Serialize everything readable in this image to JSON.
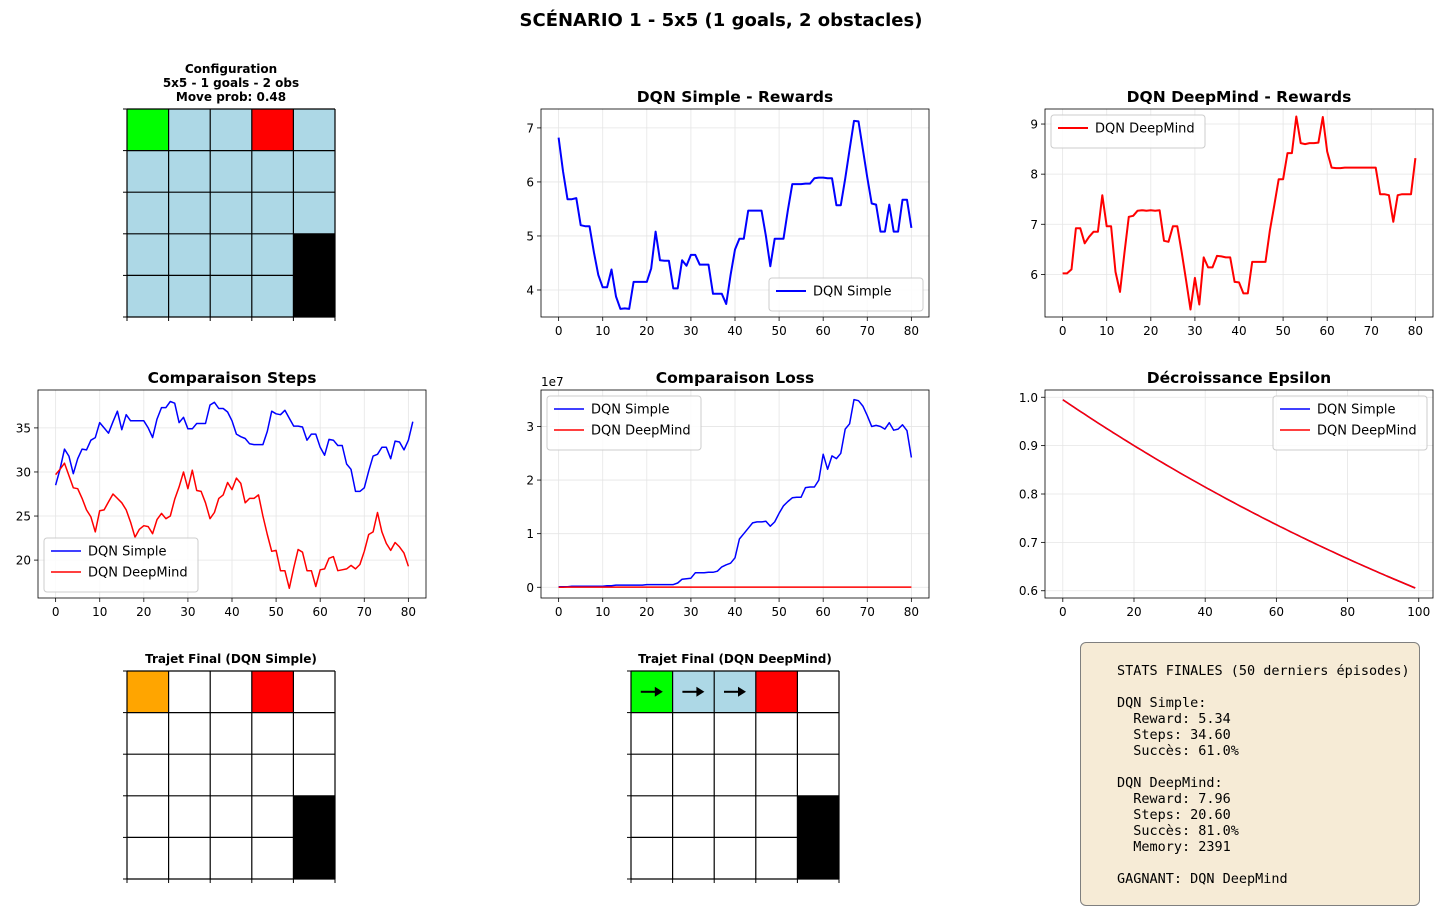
{
  "figure": {
    "suptitle": "SCÉNARIO 1 - 5x5 (1 goals, 2 obstacles)"
  },
  "colors": {
    "goal": "#00ff00",
    "trap": "#ff0000",
    "obstacle": "#000000",
    "path": "#add8e6",
    "agent": "#ffa500",
    "empty": "#ffffff",
    "simple": "#0000ff",
    "deepmind": "#ff0000",
    "grid": "#e5e5e5",
    "stats_bg": "#f6ebd6"
  },
  "grids": {
    "config": {
      "title_lines": [
        "Configuration",
        "5x5 - 1 goals - 2 obs",
        "Move prob: 0.48"
      ],
      "cells": [
        [
          "goal",
          "path",
          "path",
          "trap",
          "path"
        ],
        [
          "path",
          "path",
          "path",
          "path",
          "path"
        ],
        [
          "path",
          "path",
          "path",
          "path",
          "path"
        ],
        [
          "path",
          "path",
          "path",
          "path",
          "obstacle"
        ],
        [
          "path",
          "path",
          "path",
          "path",
          "obstacle"
        ]
      ],
      "arrows": []
    },
    "simple": {
      "title_lines": [
        "Trajet Final (DQN Simple)"
      ],
      "cells": [
        [
          "agent",
          "empty",
          "empty",
          "trap",
          "empty"
        ],
        [
          "empty",
          "empty",
          "empty",
          "empty",
          "empty"
        ],
        [
          "empty",
          "empty",
          "empty",
          "empty",
          "empty"
        ],
        [
          "empty",
          "empty",
          "empty",
          "empty",
          "obstacle"
        ],
        [
          "empty",
          "empty",
          "empty",
          "empty",
          "obstacle"
        ]
      ],
      "arrows": []
    },
    "deepmind": {
      "title_lines": [
        "Trajet Final (DQN DeepMind)"
      ],
      "cells": [
        [
          "goal",
          "path",
          "path",
          "trap",
          "empty"
        ],
        [
          "empty",
          "empty",
          "empty",
          "empty",
          "empty"
        ],
        [
          "empty",
          "empty",
          "empty",
          "empty",
          "empty"
        ],
        [
          "empty",
          "empty",
          "empty",
          "empty",
          "obstacle"
        ],
        [
          "empty",
          "empty",
          "empty",
          "empty",
          "obstacle"
        ]
      ],
      "arrows": [
        [
          0,
          0,
          "right"
        ],
        [
          0,
          1,
          "right"
        ],
        [
          0,
          2,
          "right"
        ]
      ]
    }
  },
  "chart_data": [
    {
      "id": "rewards-simple",
      "type": "line",
      "title": "DQN Simple - Rewards",
      "xlabel": "",
      "ylabel": "",
      "xlim": [
        -4,
        84
      ],
      "ylim": [
        3.5,
        7.35
      ],
      "xticks": [
        0,
        10,
        20,
        30,
        40,
        50,
        60,
        70,
        80
      ],
      "yticks": [
        4,
        5,
        6,
        7
      ],
      "grid": true,
      "legend": "lower right",
      "series": [
        {
          "name": "DQN Simple",
          "color": "#0000ff",
          "x_start": 0,
          "values": [
            6.82,
            6.2,
            5.68,
            5.68,
            5.7,
            5.2,
            5.18,
            5.18,
            4.7,
            4.28,
            4.05,
            4.05,
            4.38,
            3.88,
            3.65,
            3.66,
            3.65,
            4.15,
            4.15,
            4.15,
            4.15,
            4.4,
            5.08,
            4.55,
            4.54,
            4.54,
            4.03,
            4.03,
            4.55,
            4.45,
            4.65,
            4.65,
            4.47,
            4.47,
            4.47,
            3.93,
            3.93,
            3.93,
            3.74,
            4.28,
            4.75,
            4.95,
            4.95,
            5.47,
            5.47,
            5.47,
            5.47,
            5.0,
            4.44,
            4.95,
            4.95,
            4.95,
            5.48,
            5.96,
            5.96,
            5.96,
            5.97,
            5.97,
            6.07,
            6.08,
            6.08,
            6.07,
            6.07,
            5.57,
            5.57,
            6.06,
            6.6,
            7.13,
            7.12,
            6.6,
            6.08,
            5.6,
            5.58,
            5.08,
            5.08,
            5.58,
            5.08,
            5.08,
            5.67,
            5.67,
            5.15
          ]
        }
      ]
    },
    {
      "id": "rewards-deepmind",
      "type": "line",
      "title": "DQN DeepMind - Rewards",
      "xlabel": "",
      "ylabel": "",
      "xlim": [
        -4,
        84
      ],
      "ylim": [
        5.15,
        9.3
      ],
      "xticks": [
        0,
        10,
        20,
        30,
        40,
        50,
        60,
        70,
        80
      ],
      "yticks": [
        6,
        7,
        8,
        9
      ],
      "grid": true,
      "legend": "upper left",
      "series": [
        {
          "name": "DQN DeepMind",
          "color": "#ff0000",
          "x_start": 0,
          "values": [
            6.02,
            6.02,
            6.1,
            6.92,
            6.92,
            6.62,
            6.75,
            6.85,
            6.85,
            7.58,
            6.96,
            6.96,
            6.05,
            5.65,
            6.42,
            7.15,
            7.17,
            7.27,
            7.28,
            7.27,
            7.28,
            7.27,
            7.28,
            6.67,
            6.65,
            6.96,
            6.96,
            6.44,
            5.88,
            5.3,
            5.93,
            5.4,
            6.34,
            6.14,
            6.14,
            6.37,
            6.36,
            6.34,
            6.34,
            5.85,
            5.84,
            5.62,
            5.62,
            6.25,
            6.25,
            6.25,
            6.25,
            6.88,
            7.38,
            7.9,
            7.9,
            8.42,
            8.42,
            9.15,
            8.62,
            8.6,
            8.62,
            8.62,
            8.63,
            9.14,
            8.45,
            8.13,
            8.12,
            8.12,
            8.13,
            8.13,
            8.13,
            8.13,
            8.13,
            8.13,
            8.13,
            8.13,
            7.6,
            7.6,
            7.58,
            7.05,
            7.58,
            7.6,
            7.6,
            7.6,
            8.32
          ]
        }
      ]
    },
    {
      "id": "steps",
      "type": "line",
      "title": "Comparaison Steps",
      "xlabel": "",
      "ylabel": "",
      "xlim": [
        -4,
        84
      ],
      "ylim": [
        15.7,
        39.3
      ],
      "xticks": [
        0,
        10,
        20,
        30,
        40,
        50,
        60,
        70,
        80
      ],
      "yticks": [
        20,
        25,
        30,
        35
      ],
      "grid": true,
      "legend": "lower left",
      "series": [
        {
          "name": "DQN Simple",
          "color": "#0000ff",
          "x_start": 0,
          "values": [
            28.5,
            30.3,
            32.6,
            31.8,
            29.8,
            31.5,
            32.6,
            32.5,
            33.6,
            33.9,
            35.6,
            35.0,
            34.4,
            35.7,
            36.9,
            34.8,
            36.5,
            35.8,
            35.8,
            35.8,
            35.8,
            35.0,
            33.9,
            36.0,
            37.3,
            37.3,
            38.0,
            37.8,
            35.6,
            36.2,
            34.9,
            34.9,
            35.5,
            35.5,
            35.5,
            37.6,
            37.9,
            37.2,
            37.2,
            36.8,
            35.8,
            34.3,
            34.0,
            33.8,
            33.2,
            33.1,
            33.1,
            33.1,
            34.6,
            36.9,
            36.6,
            36.5,
            37.0,
            36.1,
            35.2,
            35.2,
            35.1,
            33.6,
            34.3,
            34.3,
            32.8,
            31.9,
            33.7,
            33.6,
            33.0,
            33.0,
            30.9,
            30.3,
            27.8,
            27.8,
            28.2,
            30.1,
            31.8,
            32.0,
            32.8,
            32.8,
            31.5,
            33.5,
            33.4,
            32.5,
            33.6,
            35.7
          ]
        },
        {
          "name": "DQN DeepMind",
          "color": "#ff0000",
          "x_start": 0,
          "values": [
            29.7,
            30.3,
            31.0,
            29.6,
            28.2,
            28.1,
            27.0,
            25.7,
            24.9,
            23.2,
            25.6,
            25.7,
            26.6,
            27.5,
            27.0,
            26.5,
            25.7,
            24.3,
            22.6,
            23.5,
            23.9,
            23.8,
            23.0,
            24.6,
            25.3,
            24.7,
            25.0,
            26.9,
            28.3,
            30.0,
            28.1,
            30.2,
            27.9,
            27.8,
            26.5,
            24.7,
            25.4,
            27.0,
            27.4,
            28.8,
            28.0,
            29.3,
            28.7,
            26.5,
            27.0,
            27.0,
            27.4,
            25.0,
            22.9,
            21.0,
            21.1,
            18.8,
            18.8,
            16.8,
            19.1,
            21.2,
            20.9,
            18.8,
            18.8,
            17.0,
            18.9,
            19.0,
            20.2,
            20.4,
            18.8,
            18.9,
            19.0,
            19.4,
            19.0,
            19.5,
            21.0,
            22.9,
            23.2,
            25.4,
            23.2,
            21.9,
            21.1,
            22.0,
            21.5,
            20.8,
            19.3
          ]
        }
      ]
    },
    {
      "id": "loss",
      "type": "line",
      "title": "Comparaison Loss",
      "offset_label": "1e7",
      "xlabel": "",
      "ylabel": "",
      "xlim": [
        -4,
        84
      ],
      "ylim": [
        -0.2,
        3.68
      ],
      "xticks": [
        0,
        10,
        20,
        30,
        40,
        50,
        60,
        70,
        80
      ],
      "yticks": [
        0,
        1,
        2,
        3
      ],
      "grid": true,
      "legend": "upper left",
      "series": [
        {
          "name": "DQN Simple",
          "color": "#0000ff",
          "x_start": 0,
          "values": [
            0.01,
            0.01,
            0.01,
            0.02,
            0.02,
            0.02,
            0.02,
            0.02,
            0.02,
            0.02,
            0.02,
            0.03,
            0.03,
            0.04,
            0.04,
            0.04,
            0.04,
            0.04,
            0.04,
            0.04,
            0.05,
            0.05,
            0.05,
            0.05,
            0.05,
            0.05,
            0.05,
            0.08,
            0.15,
            0.16,
            0.17,
            0.27,
            0.27,
            0.27,
            0.28,
            0.28,
            0.3,
            0.38,
            0.42,
            0.45,
            0.55,
            0.9,
            1.0,
            1.1,
            1.2,
            1.22,
            1.22,
            1.23,
            1.14,
            1.22,
            1.38,
            1.52,
            1.6,
            1.67,
            1.68,
            1.68,
            1.86,
            1.87,
            1.87,
            2.0,
            2.48,
            2.2,
            2.45,
            2.4,
            2.5,
            2.95,
            3.05,
            3.5,
            3.48,
            3.38,
            3.2,
            3.0,
            3.02,
            3.0,
            2.95,
            3.07,
            2.93,
            2.95,
            3.03,
            2.92,
            2.42
          ]
        },
        {
          "name": "DQN DeepMind",
          "color": "#ff0000",
          "x_start": 0,
          "values": [
            0.002,
            0.002,
            0.003,
            0.003,
            0.003,
            0.003,
            0.003,
            0.003,
            0.003,
            0.003,
            0.003,
            0.003,
            0.003,
            0.003,
            0.003,
            0.003,
            0.003,
            0.003,
            0.003,
            0.003,
            0.003,
            0.003,
            0.003,
            0.003,
            0.003,
            0.003,
            0.003,
            0.003,
            0.003,
            0.003,
            0.003,
            0.003,
            0.003,
            0.003,
            0.003,
            0.003,
            0.003,
            0.003,
            0.003,
            0.003,
            0.003,
            0.003,
            0.003,
            0.003,
            0.003,
            0.003,
            0.003,
            0.003,
            0.003,
            0.003,
            0.003,
            0.003,
            0.003,
            0.003,
            0.003,
            0.003,
            0.003,
            0.003,
            0.003,
            0.003,
            0.003,
            0.003,
            0.003,
            0.003,
            0.003,
            0.003,
            0.003,
            0.003,
            0.003,
            0.003,
            0.003,
            0.003,
            0.003,
            0.003,
            0.003,
            0.003,
            0.003,
            0.003,
            0.003,
            0.003,
            0.003
          ]
        }
      ]
    },
    {
      "id": "epsilon",
      "type": "line",
      "title": "Décroissance Epsilon",
      "xlabel": "",
      "ylabel": "",
      "xlim": [
        -5,
        104
      ],
      "ylim": [
        0.585,
        1.015
      ],
      "xticks": [
        0,
        20,
        40,
        60,
        80,
        100
      ],
      "yticks": [
        0.6,
        0.7,
        0.8,
        0.9,
        1.0
      ],
      "ytick_labels": [
        "0.6",
        "0.7",
        "0.8",
        "0.9",
        "1.0"
      ],
      "grid": true,
      "legend": "upper right",
      "decay": {
        "start": 0.995,
        "rate": 0.995,
        "episodes": 100
      },
      "series": [
        {
          "name": "DQN Simple",
          "color": "#0000ff"
        },
        {
          "name": "DQN DeepMind",
          "color": "#ff0000"
        }
      ]
    }
  ],
  "stats": {
    "lines": [
      "STATS FINALES (50 derniers épisodes)",
      "",
      "DQN Simple:",
      "  Reward: 5.34",
      "  Steps: 34.60",
      "  Succès: 61.0%",
      "",
      "DQN DeepMind:",
      "  Reward: 7.96",
      "  Steps: 20.60",
      "  Succès: 81.0%",
      "  Memory: 2391",
      "",
      "GAGNANT: DQN DeepMind"
    ]
  }
}
